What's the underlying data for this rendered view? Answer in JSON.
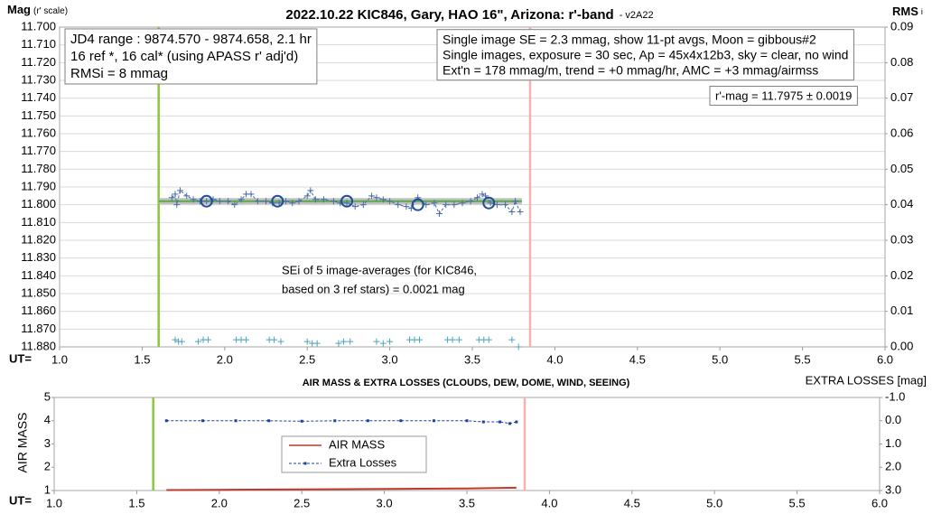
{
  "chart_data": [
    {
      "type": "scatter",
      "title": "2022.10.22 KIC846, Gary, HAO 16\", Arizona: r'-band",
      "subtitle": "- v2A22",
      "y_label": "Mag",
      "y_label_sub": "(r' scale)",
      "y2_label": "RMS",
      "y2_label_sub": "i",
      "x_label": "UT=",
      "grid": true,
      "xlim": [
        1.0,
        6.0
      ],
      "xticks": [
        {
          "value": 1.0,
          "label": "1.0"
        },
        1.5,
        {
          "value": 2.0,
          "label": "2.0"
        },
        2.5,
        {
          "value": 3.0,
          "label": "3.0"
        },
        3.5,
        {
          "value": 4.0,
          "label": "4.0"
        },
        4.5,
        {
          "value": 5.0,
          "label": "5.0"
        },
        5.5,
        {
          "value": 6.0,
          "label": "6.0"
        }
      ],
      "ylim": [
        11.88,
        11.7
      ],
      "yticks": [
        {
          "value": 11.7,
          "label": "11.700"
        },
        {
          "value": 11.71,
          "label": "11.710"
        },
        {
          "value": 11.72,
          "label": "11.720"
        },
        {
          "value": 11.73,
          "label": "11.730"
        },
        {
          "value": 11.74,
          "label": "11.740"
        },
        {
          "value": 11.75,
          "label": "11.750"
        },
        {
          "value": 11.76,
          "label": "11.760"
        },
        {
          "value": 11.77,
          "label": "11.770"
        },
        {
          "value": 11.78,
          "label": "11.780"
        },
        {
          "value": 11.79,
          "label": "11.790"
        },
        {
          "value": 11.8,
          "label": "11.800"
        },
        {
          "value": 11.81,
          "label": "11.810"
        },
        {
          "value": 11.82,
          "label": "11.820"
        },
        {
          "value": 11.83,
          "label": "11.830"
        },
        {
          "value": 11.84,
          "label": "11.840"
        },
        {
          "value": 11.85,
          "label": "11.850"
        },
        {
          "value": 11.86,
          "label": "11.860"
        },
        {
          "value": 11.87,
          "label": "11.870"
        },
        {
          "value": 11.88,
          "label": "11.880"
        }
      ],
      "y2lim": [
        0,
        0.09
      ],
      "y2ticks": [
        {
          "value": 0,
          "label": "0.00"
        },
        {
          "value": 0.01,
          "label": "0.01"
        },
        {
          "value": 0.02,
          "label": "0.02"
        },
        {
          "value": 0.03,
          "label": "0.03"
        },
        {
          "value": 0.04,
          "label": "0.04"
        },
        {
          "value": 0.05,
          "label": "0.05"
        },
        {
          "value": 0.06,
          "label": "0.06"
        },
        {
          "value": 0.07,
          "label": "0.07"
        },
        {
          "value": 0.08,
          "label": "0.08"
        },
        {
          "value": 0.09,
          "label": "0.09"
        }
      ],
      "vlines": [
        {
          "x": 1.6,
          "color": "#8cc63f"
        },
        {
          "x": 3.85,
          "color": "#f2b3b3"
        }
      ],
      "series": [
        {
          "x": [
            1.6,
            3.8
          ],
          "values": [
            11.798,
            11.798
          ],
          "color": "#b3b3b3",
          "line": "band",
          "marker": "none"
        },
        {
          "x": [
            1.6,
            3.8
          ],
          "values": [
            11.798,
            11.798
          ],
          "color": "#5aa84a",
          "line": "solid",
          "marker": "none"
        },
        {
          "x": [
            1.68,
            1.7,
            1.71,
            1.73,
            1.77,
            1.81,
            1.85,
            1.89,
            1.93,
            1.97,
            2.02,
            2.06,
            2.1,
            2.13,
            2.16,
            2.2,
            2.25,
            2.29,
            2.33,
            2.37,
            2.41,
            2.45,
            2.5,
            2.52,
            2.55,
            2.6,
            2.66,
            2.7,
            2.74,
            2.79,
            2.84,
            2.89,
            2.92,
            2.96,
            3.0,
            3.05,
            3.1,
            3.13,
            3.17,
            3.22,
            3.27,
            3.3,
            3.34,
            3.39,
            3.44,
            3.49,
            3.53,
            3.56,
            3.58,
            3.61,
            3.65,
            3.7,
            3.74,
            3.76,
            3.79
          ],
          "values": [
            11.796,
            11.794,
            11.8,
            11.792,
            11.795,
            11.797,
            11.798,
            11.798,
            11.797,
            11.798,
            11.798,
            11.8,
            11.797,
            11.794,
            11.794,
            11.798,
            11.798,
            11.799,
            11.799,
            11.798,
            11.799,
            11.798,
            11.795,
            11.792,
            11.797,
            11.797,
            11.798,
            11.799,
            11.799,
            11.801,
            11.8,
            11.795,
            11.796,
            11.797,
            11.798,
            11.8,
            11.801,
            11.802,
            11.796,
            11.8,
            11.799,
            11.805,
            11.8,
            11.8,
            11.799,
            11.798,
            11.796,
            11.794,
            11.795,
            11.799,
            11.8,
            11.8,
            11.804,
            11.798,
            11.804
          ],
          "color": "#4a6fa5",
          "line": "dashed",
          "marker": "plus"
        },
        {
          "x": [
            1.89,
            2.32,
            2.74,
            3.17,
            3.6
          ],
          "values": [
            11.798,
            11.798,
            11.798,
            11.8,
            11.799
          ],
          "color": "#1f4e9c",
          "line": "none",
          "marker": "circle"
        },
        {
          "x": [
            1.7,
            1.72,
            1.74,
            1.84,
            1.87,
            1.9,
            2.07,
            2.1,
            2.13,
            2.27,
            2.3,
            2.34,
            2.5,
            2.53,
            2.56,
            2.69,
            2.72,
            2.76,
            2.92,
            2.96,
            3.0,
            3.12,
            3.15,
            3.18,
            3.35,
            3.38,
            3.42,
            3.54,
            3.57,
            3.6,
            3.74,
            3.78
          ],
          "values": [
            0.002,
            0.0015,
            0.0015,
            0.0015,
            0.002,
            0.002,
            0.002,
            0.002,
            0.002,
            0.002,
            0.002,
            0.0015,
            0.0015,
            0.001,
            0.001,
            0.001,
            0.0015,
            0.0015,
            0.0015,
            0.001,
            0.0015,
            0.002,
            0.002,
            0.002,
            0.002,
            0.002,
            0.002,
            0.002,
            0.002,
            0.002,
            0.002,
            0.0
          ],
          "color": "#4ba3b8",
          "line": "none",
          "marker": "plus",
          "axis": "y2"
        }
      ],
      "annotations": [
        {
          "lines": [
            "JD4 range : 9874.570 - 9874.658,  2.1  hr",
            "16 ref *, 16 cal* (using APASS r' adj'd)",
            "RMSi = 8 mmag"
          ]
        },
        {
          "lines": [
            "Single image SE = 2.3 mmag, show  11-pt avgs, Moon = gibbous#2",
            "Single images, exposure = 30 sec, Ap = 45x4x12b3, sky = clear, no wind",
            "Ext'n = 178 mmag/m, trend = +0  mmag/hr, AMC = +3 mmag/airmss"
          ]
        },
        {
          "lines": [
            "r'-mag = 11.7975 ± 0.0019"
          ]
        },
        {
          "lines": [
            "SEi of 5 image-averages (for KIC846,",
            "based on 3 ref stars) = 0.0021 mag"
          ]
        }
      ]
    },
    {
      "type": "line",
      "title": "AIR MASS & EXTRA LOSSES (CLOUDS, DEW, DOME, WIND, SEEING)",
      "y_label": "AIR MASS",
      "y2_label": "EXTRA LOSSES [mag]",
      "x_label": "UT=",
      "grid": false,
      "xlim": [
        1.0,
        6.0
      ],
      "xticks": [
        {
          "value": 1.0,
          "label": "1.0"
        },
        1.5,
        {
          "value": 2.0,
          "label": "2.0"
        },
        2.5,
        {
          "value": 3.0,
          "label": "3.0"
        },
        3.5,
        {
          "value": 4.0,
          "label": "4.0"
        },
        4.5,
        {
          "value": 5.0,
          "label": "5.0"
        },
        5.5,
        {
          "value": 6.0,
          "label": "6.0"
        }
      ],
      "ylim": [
        1,
        5
      ],
      "yticks": [
        1,
        2,
        3,
        4,
        5
      ],
      "y2lim": [
        3.0,
        -1.0
      ],
      "y2ticks": [
        {
          "value": -1.0,
          "label": "-1.0"
        },
        {
          "value": 0.0,
          "label": "0.0"
        },
        {
          "value": 1.0,
          "label": "1.0"
        },
        {
          "value": 2.0,
          "label": "2.0"
        },
        {
          "value": 3.0,
          "label": "3.0"
        }
      ],
      "vlines": [
        {
          "x": 1.6,
          "color": "#8cc63f"
        },
        {
          "x": 3.85,
          "color": "#f2b3b3"
        }
      ],
      "series": [
        {
          "name": "AIR MASS",
          "x": [
            1.68,
            2.0,
            2.5,
            3.0,
            3.5,
            3.8
          ],
          "values": [
            1.02,
            1.03,
            1.05,
            1.07,
            1.09,
            1.12
          ],
          "color": "#c0392b",
          "line": "solid",
          "marker": "none"
        },
        {
          "name": "Extra Losses",
          "x": [
            1.68,
            1.9,
            2.1,
            2.3,
            2.5,
            2.7,
            2.9,
            3.1,
            3.3,
            3.5,
            3.6,
            3.7,
            3.76,
            3.8
          ],
          "values": [
            0.0,
            0.0,
            0.0,
            0.0,
            0.02,
            0.0,
            0.0,
            0.0,
            0.0,
            0.0,
            0.05,
            0.05,
            0.12,
            0.05
          ],
          "color": "#1f3f9c",
          "line": "dashed",
          "marker": "square",
          "axis": "y2"
        }
      ]
    }
  ]
}
